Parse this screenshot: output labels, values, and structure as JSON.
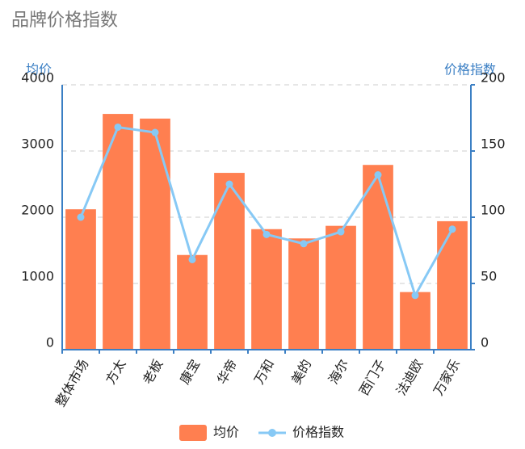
{
  "chart_data": {
    "type": "bar-line",
    "title": "品牌价格指数",
    "y_label": "均价",
    "y2_label": "价格指数",
    "categories": [
      "整体市场",
      "方太",
      "老板",
      "康宝",
      "华帝",
      "万和",
      "美的",
      "海尔",
      "西门子",
      "法迪欧",
      "万家乐"
    ],
    "series": [
      {
        "name": "均价",
        "type": "bar",
        "color": "#ff7f50",
        "values": [
          2120,
          3560,
          3490,
          1430,
          2670,
          1820,
          1680,
          1870,
          2790,
          870,
          1940
        ]
      },
      {
        "name": "价格指数",
        "type": "line",
        "axis": "y2",
        "color": "#87c9f5",
        "values": [
          100,
          168,
          164,
          68,
          125,
          87,
          80,
          89,
          132,
          41,
          91
        ]
      }
    ],
    "ylim": [
      0,
      4000
    ],
    "yticks": [
      0,
      1000,
      2000,
      3000,
      4000
    ],
    "y2lim": [
      0,
      200
    ],
    "y2ticks": [
      0,
      50,
      100,
      150,
      200
    ],
    "grid": true,
    "legend": "bottom"
  }
}
